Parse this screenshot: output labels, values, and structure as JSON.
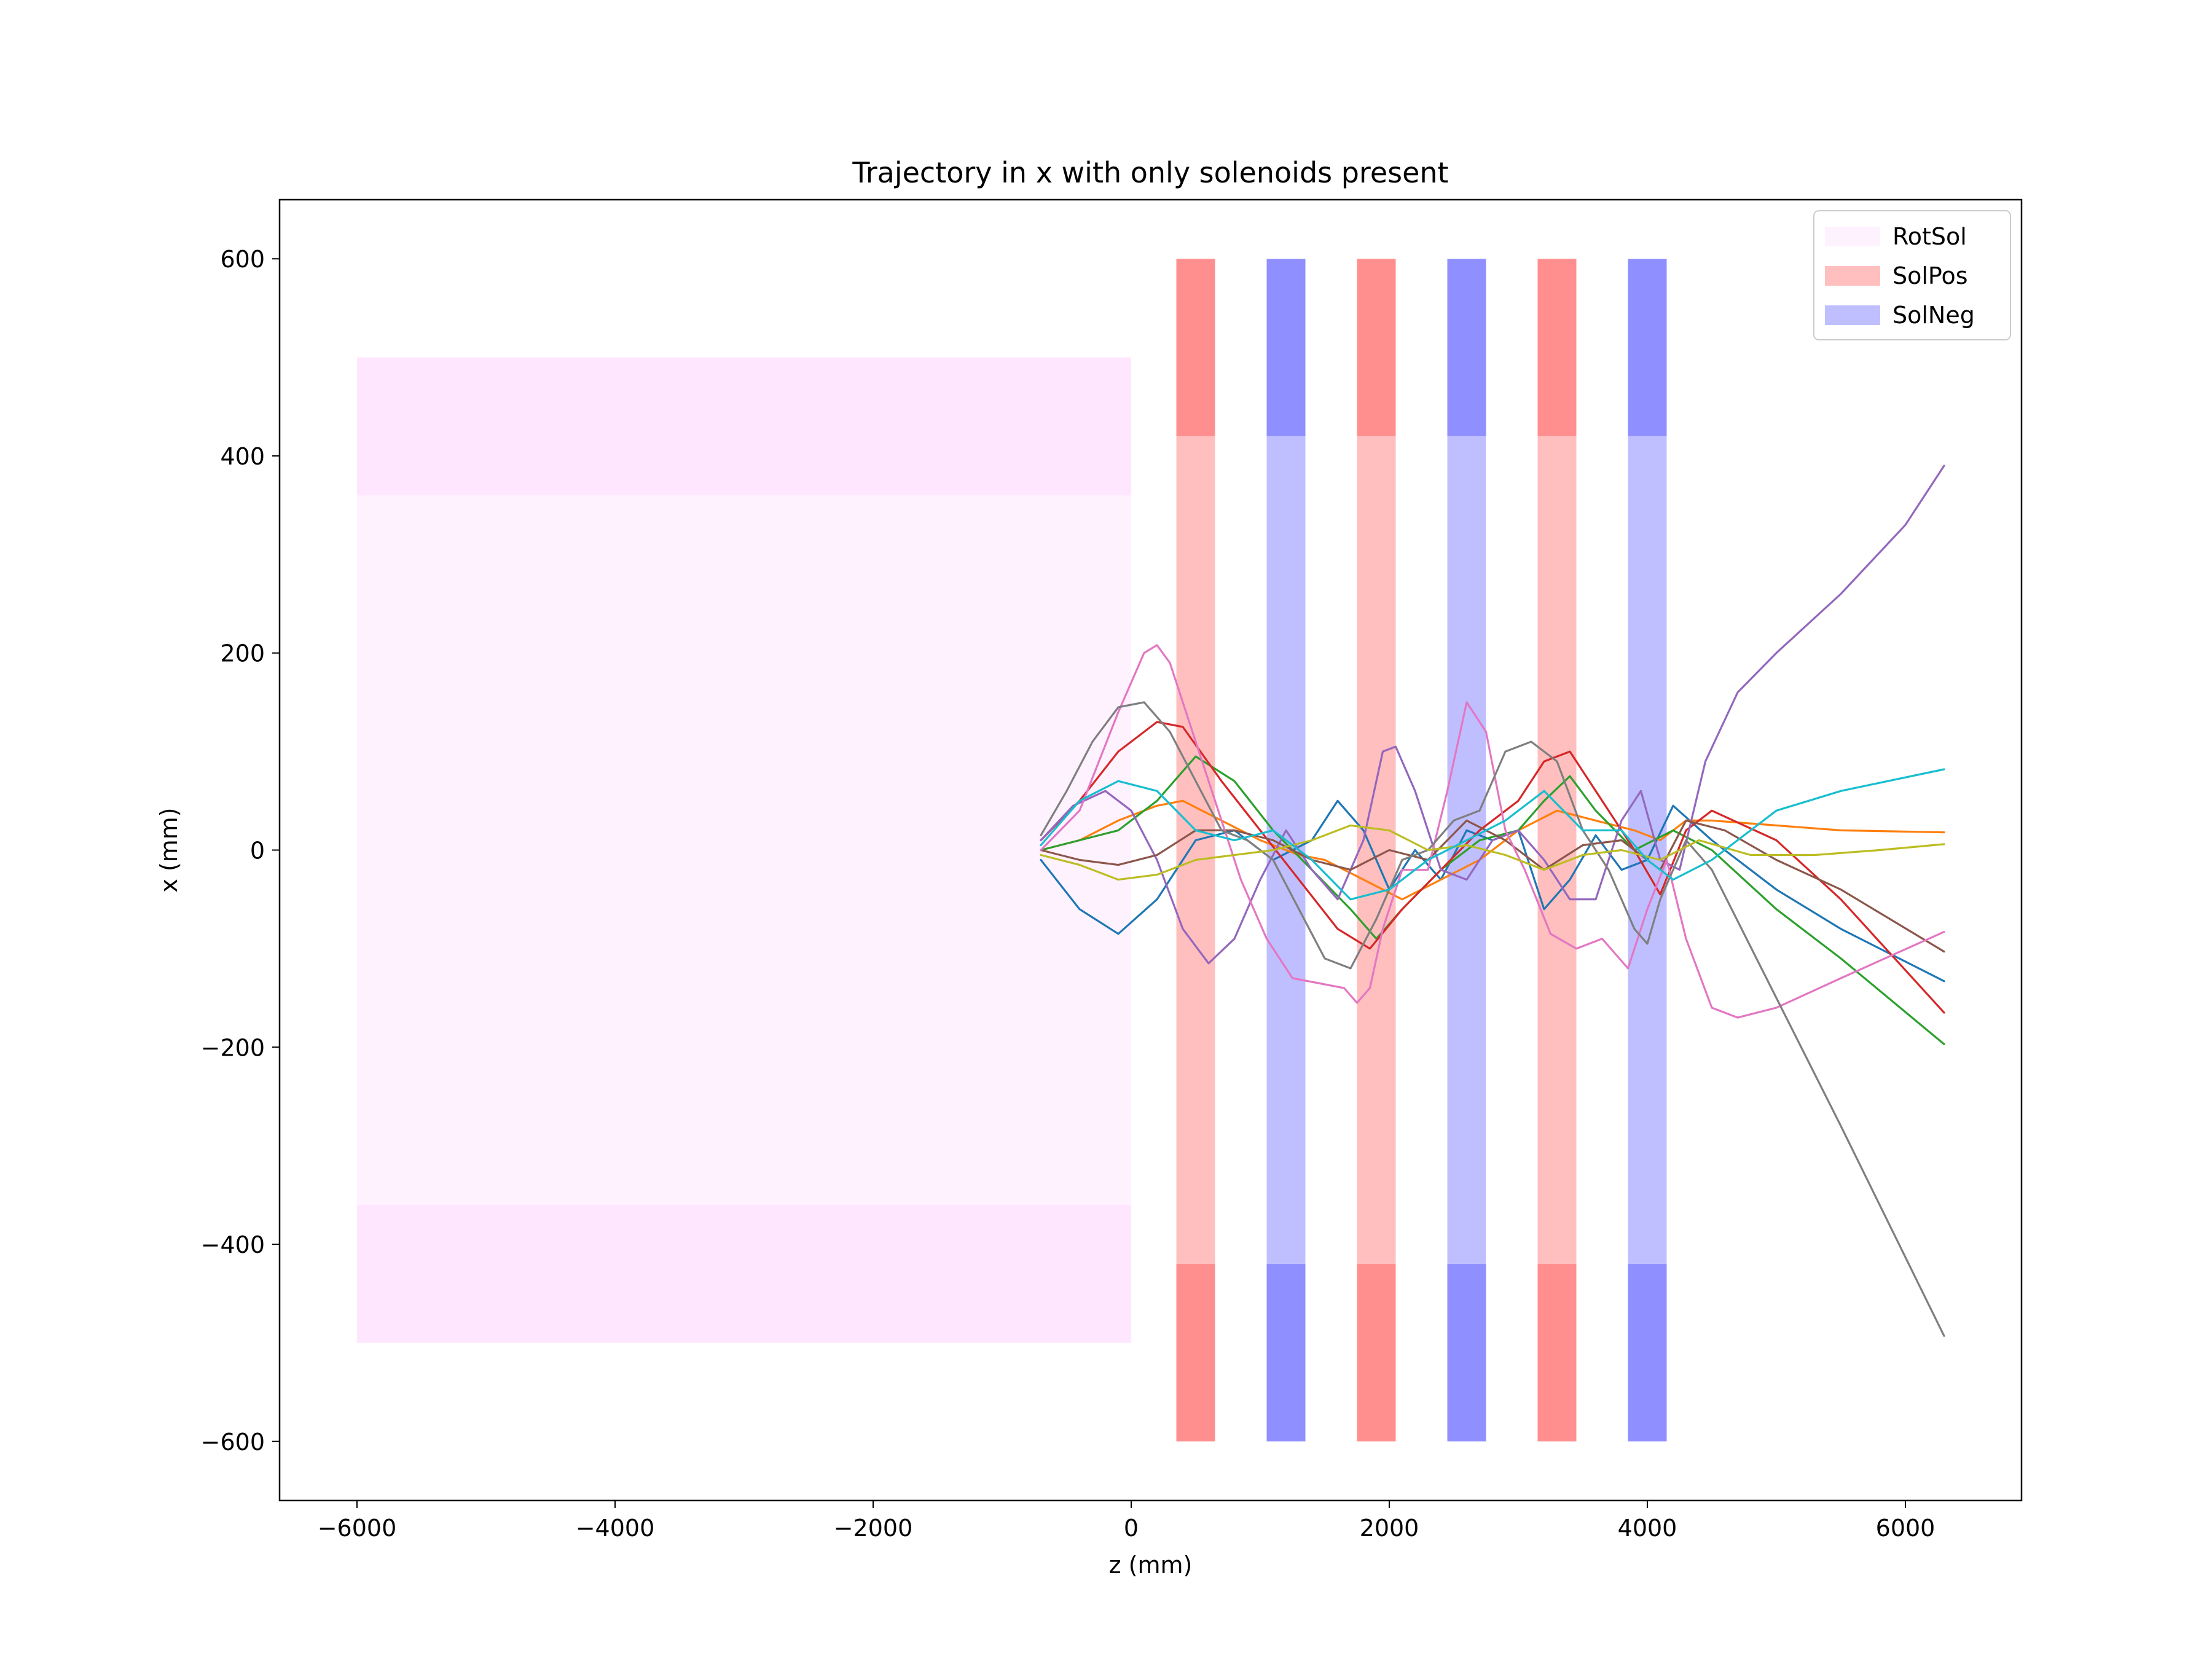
{
  "chart_data": {
    "type": "line",
    "title": "Trajectory in x with only solenoids present",
    "xlabel": "z (mm)",
    "ylabel": "x (mm)",
    "xlim": [
      -6600,
      6900
    ],
    "ylim": [
      -660,
      660
    ],
    "xticks": [
      -6000,
      -4000,
      -2000,
      0,
      2000,
      4000,
      6000
    ],
    "xtick_labels": [
      "−6000",
      "−4000",
      "−2000",
      "0",
      "2000",
      "4000",
      "6000"
    ],
    "yticks": [
      -600,
      -400,
      -200,
      0,
      200,
      400,
      600
    ],
    "ytick_labels": [
      "−600",
      "−400",
      "−200",
      "0",
      "200",
      "400",
      "600"
    ],
    "grid": false,
    "legend_position": "top-right",
    "legend": [
      {
        "label": "RotSol",
        "color": "#ff80ff",
        "alpha": 0.1
      },
      {
        "label": "SolPos",
        "color": "#ff0000",
        "alpha": 0.25
      },
      {
        "label": "SolNeg",
        "color": "#0000ff",
        "alpha": 0.25
      }
    ],
    "regions": [
      {
        "group": "RotSol",
        "color": "#ff80ff",
        "x0": -6000,
        "x1": 0,
        "y0": -500,
        "y1": 500,
        "alpha": 0.1
      },
      {
        "group": "RotSol",
        "color": "#ff80ff",
        "x0": -6000,
        "x1": 0,
        "y0": 360,
        "y1": 500,
        "alpha": 0.1
      },
      {
        "group": "RotSol",
        "color": "#ff80ff",
        "x0": -6000,
        "x1": 0,
        "y0": -500,
        "y1": -360,
        "alpha": 0.1
      },
      {
        "group": "SolPos",
        "color": "#ff0000",
        "x0": 350,
        "x1": 650,
        "y0": -600,
        "y1": 600,
        "alpha": 0.25
      },
      {
        "group": "SolPos",
        "color": "#ff0000",
        "x0": 350,
        "x1": 650,
        "y0": 420,
        "y1": 600,
        "alpha": 0.25
      },
      {
        "group": "SolPos",
        "color": "#ff0000",
        "x0": 350,
        "x1": 650,
        "y0": -600,
        "y1": -420,
        "alpha": 0.25
      },
      {
        "group": "SolNeg",
        "color": "#0000ff",
        "x0": 1050,
        "x1": 1350,
        "y0": -600,
        "y1": 600,
        "alpha": 0.25
      },
      {
        "group": "SolNeg",
        "color": "#0000ff",
        "x0": 1050,
        "x1": 1350,
        "y0": 420,
        "y1": 600,
        "alpha": 0.25
      },
      {
        "group": "SolNeg",
        "color": "#0000ff",
        "x0": 1050,
        "x1": 1350,
        "y0": -600,
        "y1": -420,
        "alpha": 0.25
      },
      {
        "group": "SolPos",
        "color": "#ff0000",
        "x0": 1750,
        "x1": 2050,
        "y0": -600,
        "y1": 600,
        "alpha": 0.25
      },
      {
        "group": "SolPos",
        "color": "#ff0000",
        "x0": 1750,
        "x1": 2050,
        "y0": 420,
        "y1": 600,
        "alpha": 0.25
      },
      {
        "group": "SolPos",
        "color": "#ff0000",
        "x0": 1750,
        "x1": 2050,
        "y0": -600,
        "y1": -420,
        "alpha": 0.25
      },
      {
        "group": "SolNeg",
        "color": "#0000ff",
        "x0": 2450,
        "x1": 2750,
        "y0": -600,
        "y1": 600,
        "alpha": 0.25
      },
      {
        "group": "SolNeg",
        "color": "#0000ff",
        "x0": 2450,
        "x1": 2750,
        "y0": 420,
        "y1": 600,
        "alpha": 0.25
      },
      {
        "group": "SolNeg",
        "color": "#0000ff",
        "x0": 2450,
        "x1": 2750,
        "y0": -600,
        "y1": -420,
        "alpha": 0.25
      },
      {
        "group": "SolPos",
        "color": "#ff0000",
        "x0": 3150,
        "x1": 3450,
        "y0": -600,
        "y1": 600,
        "alpha": 0.25
      },
      {
        "group": "SolPos",
        "color": "#ff0000",
        "x0": 3150,
        "x1": 3450,
        "y0": 420,
        "y1": 600,
        "alpha": 0.25
      },
      {
        "group": "SolPos",
        "color": "#ff0000",
        "x0": 3150,
        "x1": 3450,
        "y0": -600,
        "y1": -420,
        "alpha": 0.25
      },
      {
        "group": "SolNeg",
        "color": "#0000ff",
        "x0": 3850,
        "x1": 4150,
        "y0": -600,
        "y1": 600,
        "alpha": 0.25
      },
      {
        "group": "SolNeg",
        "color": "#0000ff",
        "x0": 3850,
        "x1": 4150,
        "y0": 420,
        "y1": 600,
        "alpha": 0.25
      },
      {
        "group": "SolNeg",
        "color": "#0000ff",
        "x0": 3850,
        "x1": 4150,
        "y0": -600,
        "y1": -420,
        "alpha": 0.25
      }
    ],
    "series": [
      {
        "color": "#1f77b4",
        "x": [
          -700,
          -400,
          -100,
          200,
          500,
          800,
          1100,
          1400,
          1600,
          1800,
          2000,
          2200,
          2400,
          2600,
          2800,
          3000,
          3200,
          3400,
          3600,
          3800,
          4000,
          4200,
          4500,
          5000,
          5500,
          6300
        ],
        "y": [
          -10,
          -60,
          -85,
          -50,
          10,
          20,
          -10,
          10,
          50,
          20,
          -40,
          0,
          -30,
          20,
          10,
          20,
          -60,
          -30,
          15,
          -20,
          -10,
          45,
          10,
          -40,
          -80,
          -133
        ]
      },
      {
        "color": "#ff7f0e",
        "x": [
          -700,
          -400,
          -100,
          200,
          400,
          700,
          1000,
          1300,
          1500,
          1800,
          2100,
          2400,
          2700,
          3000,
          3300,
          3600,
          3900,
          4100,
          4300,
          4500,
          5000,
          5500,
          6300
        ],
        "y": [
          0,
          10,
          30,
          45,
          50,
          30,
          10,
          -5,
          -10,
          -30,
          -50,
          -30,
          -10,
          20,
          40,
          30,
          20,
          10,
          30,
          30,
          25,
          20,
          18
        ]
      },
      {
        "color": "#2ca02c",
        "x": [
          -700,
          -400,
          -100,
          200,
          500,
          800,
          1100,
          1400,
          1700,
          1900,
          2100,
          2400,
          2700,
          3000,
          3200,
          3400,
          3600,
          3900,
          4200,
          4500,
          5000,
          5500,
          6300
        ],
        "y": [
          0,
          10,
          20,
          50,
          95,
          70,
          20,
          -20,
          -60,
          -90,
          -60,
          -20,
          10,
          20,
          50,
          75,
          40,
          0,
          20,
          0,
          -60,
          -110,
          -197
        ]
      },
      {
        "color": "#d62728",
        "x": [
          -700,
          -400,
          -100,
          200,
          400,
          700,
          1000,
          1300,
          1600,
          1850,
          2100,
          2400,
          2700,
          3000,
          3200,
          3400,
          3600,
          3900,
          4100,
          4300,
          4500,
          5000,
          5500,
          6300
        ],
        "y": [
          10,
          50,
          100,
          130,
          125,
          70,
          20,
          -30,
          -80,
          -100,
          -60,
          -20,
          20,
          50,
          90,
          100,
          60,
          0,
          -45,
          20,
          40,
          10,
          -50,
          -165
        ]
      },
      {
        "color": "#9467bd",
        "x": [
          -700,
          -450,
          -200,
          0,
          200,
          400,
          600,
          800,
          1000,
          1200,
          1400,
          1600,
          1800,
          1950,
          2050,
          2200,
          2400,
          2600,
          2800,
          3000,
          3200,
          3400,
          3600,
          3800,
          3950,
          4100,
          4250,
          4450,
          4700,
          5000,
          5500,
          6000,
          6300
        ],
        "y": [
          10,
          45,
          60,
          40,
          -10,
          -80,
          -115,
          -90,
          -30,
          20,
          -20,
          -50,
          10,
          100,
          105,
          60,
          -20,
          -30,
          10,
          20,
          -10,
          -50,
          -50,
          30,
          60,
          -10,
          -20,
          90,
          160,
          200,
          260,
          330,
          390
        ]
      },
      {
        "color": "#8c564b",
        "x": [
          -700,
          -400,
          -100,
          200,
          500,
          800,
          1100,
          1400,
          1700,
          2000,
          2300,
          2600,
          2900,
          3200,
          3500,
          3800,
          4100,
          4300,
          4600,
          5000,
          5500,
          6300
        ],
        "y": [
          0,
          -10,
          -15,
          -5,
          20,
          20,
          10,
          -10,
          -20,
          0,
          -10,
          30,
          10,
          -20,
          5,
          10,
          -20,
          30,
          20,
          -10,
          -40,
          -103
        ]
      },
      {
        "color": "#e377c2",
        "x": [
          -700,
          -400,
          -100,
          100,
          200,
          300,
          450,
          650,
          850,
          1050,
          1250,
          1450,
          1650,
          1750,
          1850,
          1950,
          2100,
          2300,
          2450,
          2600,
          2750,
          2900,
          3050,
          3250,
          3450,
          3650,
          3850,
          4000,
          4150,
          4300,
          4500,
          4700,
          5000,
          5500,
          6300
        ],
        "y": [
          0,
          40,
          140,
          200,
          208,
          190,
          130,
          50,
          -30,
          -90,
          -130,
          -135,
          -140,
          -155,
          -140,
          -80,
          -20,
          -20,
          60,
          150,
          120,
          20,
          -20,
          -85,
          -100,
          -90,
          -120,
          -60,
          -10,
          -90,
          -160,
          -170,
          -160,
          -130,
          -83
        ]
      },
      {
        "color": "#7f7f7f",
        "x": [
          -700,
          -500,
          -300,
          -100,
          100,
          300,
          500,
          700,
          900,
          1100,
          1300,
          1500,
          1700,
          1900,
          2100,
          2300,
          2500,
          2700,
          2900,
          3100,
          3300,
          3500,
          3700,
          3900,
          4000,
          4100,
          4300,
          4500,
          5000,
          5500,
          6300
        ],
        "y": [
          15,
          60,
          110,
          145,
          150,
          120,
          70,
          20,
          10,
          -10,
          -60,
          -110,
          -120,
          -70,
          -10,
          0,
          30,
          40,
          100,
          110,
          90,
          20,
          -20,
          -80,
          -95,
          -50,
          10,
          -20,
          -150,
          -280,
          -493
        ]
      },
      {
        "color": "#bcbd22",
        "x": [
          -700,
          -400,
          -100,
          200,
          500,
          800,
          1100,
          1400,
          1700,
          2000,
          2300,
          2600,
          2900,
          3200,
          3500,
          3800,
          4100,
          4400,
          4800,
          5300,
          5800,
          6300
        ],
        "y": [
          -5,
          -15,
          -30,
          -25,
          -10,
          -5,
          0,
          10,
          25,
          20,
          0,
          5,
          -5,
          -20,
          -5,
          0,
          -10,
          10,
          -5,
          -5,
          0,
          6
        ]
      },
      {
        "color": "#17becf",
        "x": [
          -700,
          -400,
          -100,
          200,
          500,
          800,
          1100,
          1400,
          1700,
          2000,
          2300,
          2600,
          2900,
          3200,
          3500,
          3800,
          4000,
          4200,
          4500,
          5000,
          5500,
          6300
        ],
        "y": [
          5,
          50,
          70,
          60,
          20,
          10,
          20,
          -10,
          -50,
          -40,
          -10,
          10,
          30,
          60,
          20,
          20,
          -10,
          -30,
          -10,
          40,
          60,
          82
        ]
      }
    ]
  }
}
